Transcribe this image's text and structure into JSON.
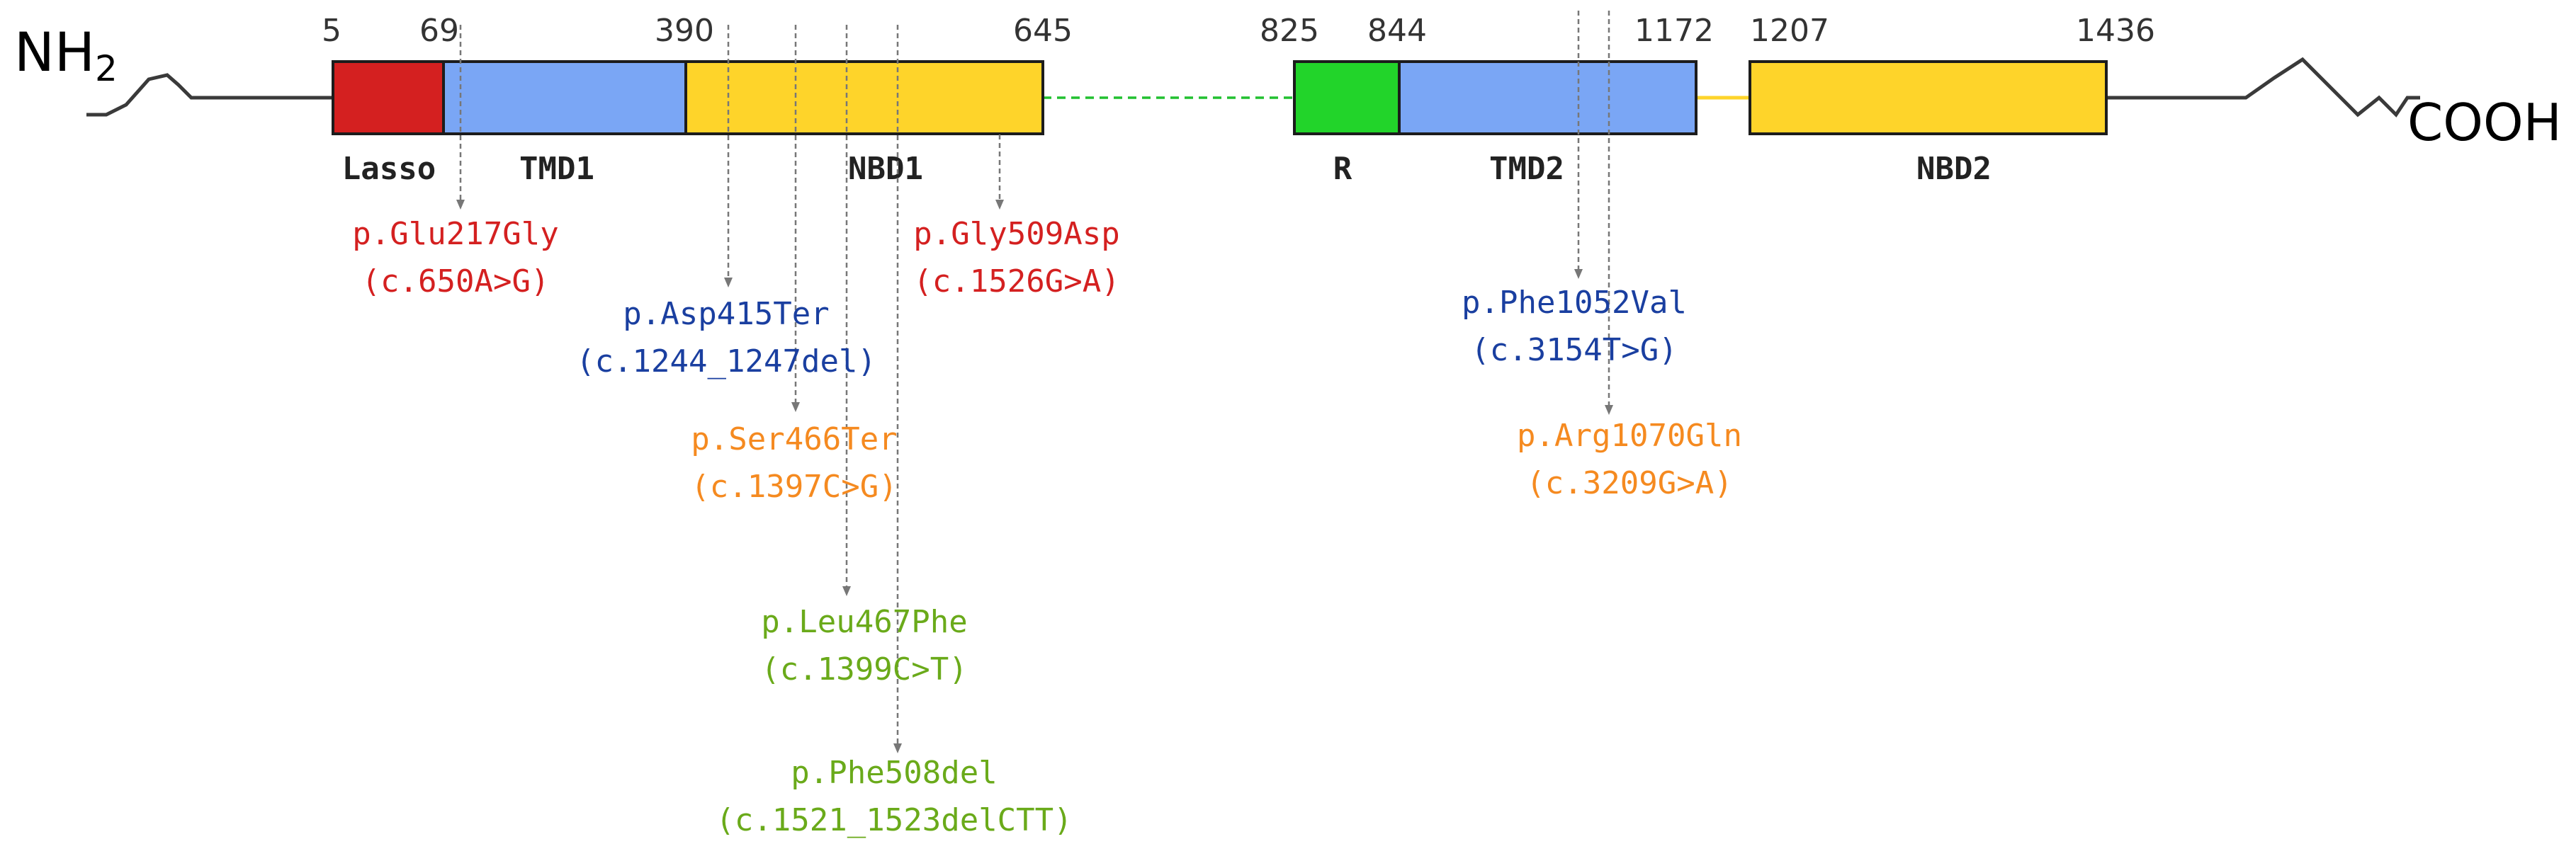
{
  "terminals": {
    "n": "NH",
    "n_sub": "2",
    "c": "COOH"
  },
  "positions": {
    "p5": "5",
    "p69": "69",
    "p390": "390",
    "p645": "645",
    "p825": "825",
    "p844": "844",
    "p1172": "1172",
    "p1207": "1207",
    "p1436": "1436"
  },
  "domains": {
    "lasso": "Lasso",
    "tmd1": "TMD1",
    "nbd1": "NBD1",
    "r": "R",
    "tmd2": "TMD2",
    "nbd2": "NBD2"
  },
  "colors": {
    "lasso": "#d42020",
    "tmd": "#7aa6f5",
    "nbd": "#fed42a",
    "r": "#22d42a",
    "red": "#d42020",
    "blue": "#1a3fa0",
    "orange": "#f58a20",
    "green": "#6aaa1a"
  },
  "mutations": {
    "glu217gly": {
      "protein": "p.Glu217Gly",
      "cdna": "(c.650A>G)"
    },
    "asp415ter": {
      "protein": "p.Asp415Ter",
      "cdna": "(c.1244_1247del)"
    },
    "ser466ter": {
      "protein": "p.Ser466Ter",
      "cdna": "(c.1397C>G)"
    },
    "leu467phe": {
      "protein": "p.Leu467Phe",
      "cdna": "(c.1399C>T)"
    },
    "phe508del": {
      "protein": "p.Phe508del",
      "cdna": "(c.1521_1523delCTT)"
    },
    "gly509asp": {
      "protein": "p.Gly509Asp",
      "cdna": "(c.1526G>A)"
    },
    "phe1052val": {
      "protein": "p.Phe1052Val",
      "cdna": "(c.3154T>G)"
    },
    "arg1070gln": {
      "protein": "p.Arg1070Gln",
      "cdna": "(c.3209G>A)"
    }
  }
}
